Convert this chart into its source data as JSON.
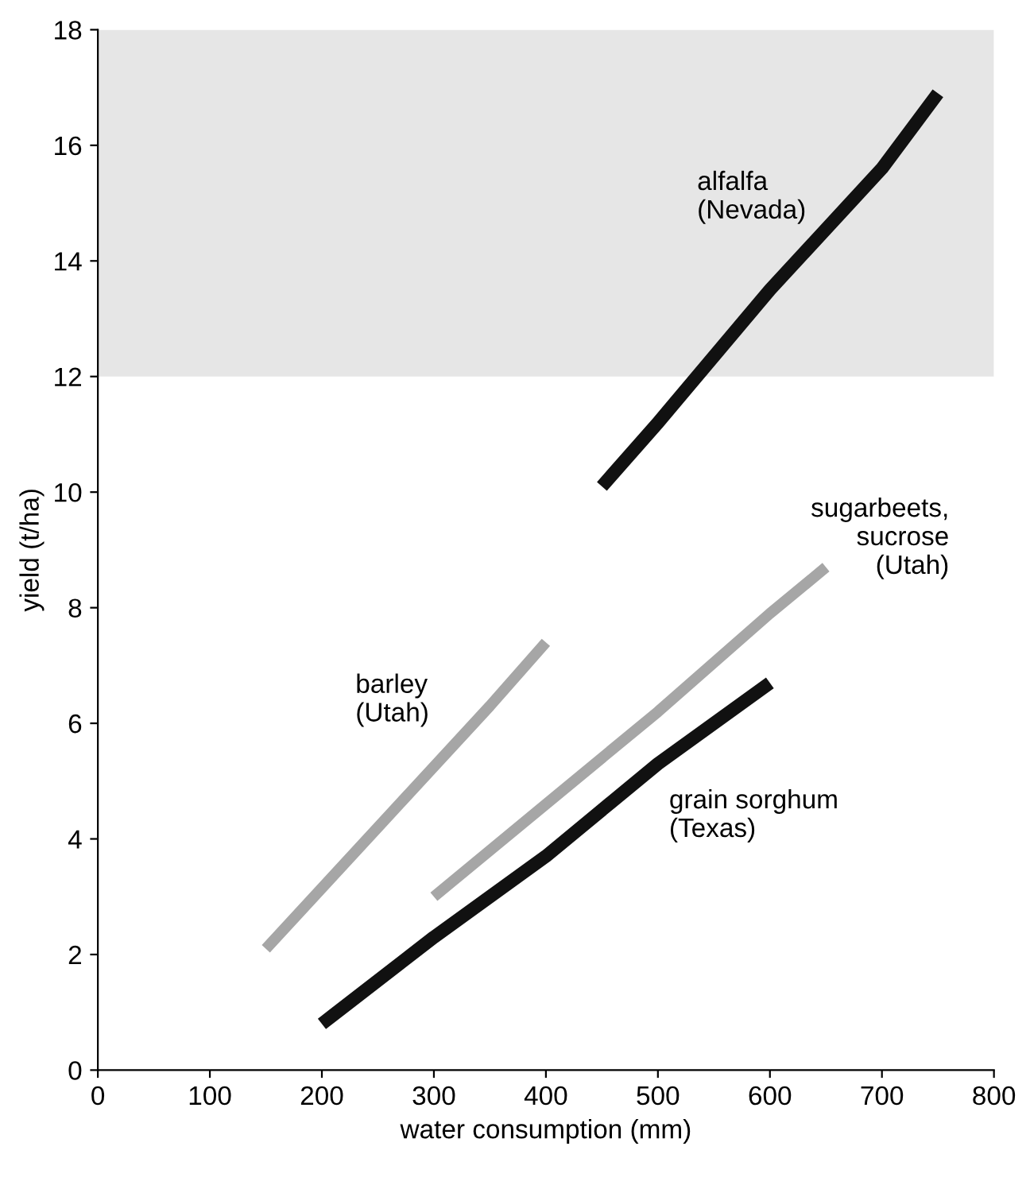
{
  "chart_data": {
    "type": "line",
    "xlabel": "water consumption (mm)",
    "ylabel": "yield (t/ha)",
    "xlim": [
      0,
      800
    ],
    "ylim": [
      0,
      18
    ],
    "xticks": [
      0,
      100,
      200,
      300,
      400,
      500,
      600,
      700,
      800
    ],
    "yticks": [
      0,
      2,
      4,
      6,
      8,
      10,
      12,
      14,
      16,
      18
    ],
    "grid": false,
    "legend": false,
    "marker": "none",
    "line_style": "solid",
    "bands": [
      {
        "axis": "y",
        "from": 12,
        "to": 18,
        "color": "#e6e6e6"
      }
    ],
    "series": [
      {
        "name": "alfalfa\n(Nevada)",
        "color": "#111111",
        "x": [
          450,
          500,
          600,
          700,
          750
        ],
        "values": [
          10.1,
          11.2,
          13.5,
          15.6,
          16.9
        ]
      },
      {
        "name": "sugarbeets,\nsucrose\n(Utah)",
        "color": "#a6a6a6",
        "x": [
          300,
          400,
          500,
          600,
          650
        ],
        "values": [
          3.0,
          4.6,
          6.2,
          7.9,
          8.7
        ]
      },
      {
        "name": "barley\n(Utah)",
        "color": "#a6a6a6",
        "x": [
          150,
          250,
          350,
          400
        ],
        "values": [
          2.1,
          4.2,
          6.3,
          7.4
        ]
      },
      {
        "name": "grain sorghum\n(Texas)",
        "color": "#111111",
        "x": [
          200,
          300,
          400,
          500,
          600
        ],
        "values": [
          0.8,
          2.3,
          3.7,
          5.3,
          6.7
        ]
      }
    ]
  }
}
